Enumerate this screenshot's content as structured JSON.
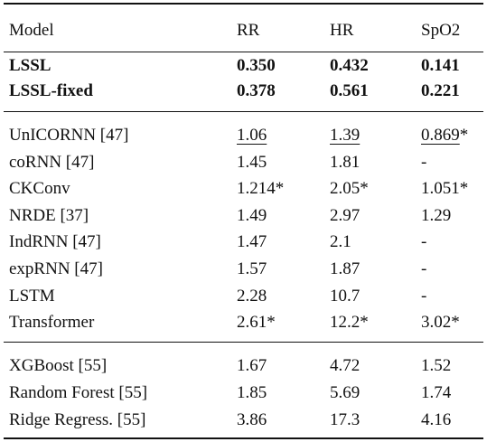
{
  "table": {
    "header": [
      "Model",
      "RR",
      "HR",
      "SpO2"
    ],
    "groups": [
      [
        [
          "LSSL",
          "0.350",
          "0.432",
          "0.141"
        ],
        [
          "LSSL-fixed",
          "0.378",
          "0.561",
          "0.221"
        ]
      ],
      [
        [
          "UnICORNN [47]",
          "1.06",
          "1.39",
          "0.869*"
        ],
        [
          "coRNN [47]",
          "1.45",
          "1.81",
          "-"
        ],
        [
          "CKConv",
          "1.214*",
          "2.05*",
          "1.051*"
        ],
        [
          "NRDE [37]",
          "1.49",
          "2.97",
          "1.29"
        ],
        [
          "IndRNN [47]",
          "1.47",
          "2.1",
          "-"
        ],
        [
          "expRNN [47]",
          "1.57",
          "1.87",
          "-"
        ],
        [
          "LSTM",
          "2.28",
          "10.7",
          "-"
        ],
        [
          "Transformer",
          "2.61*",
          "12.2*",
          "3.02*"
        ]
      ],
      [
        [
          "XGBoost [55]",
          "1.67",
          "4.72",
          "1.52"
        ],
        [
          "Random Forest [55]",
          "1.85",
          "5.69",
          "1.74"
        ],
        [
          "Ridge Regress. [55]",
          "3.86",
          "17.3",
          "4.16"
        ]
      ]
    ]
  }
}
